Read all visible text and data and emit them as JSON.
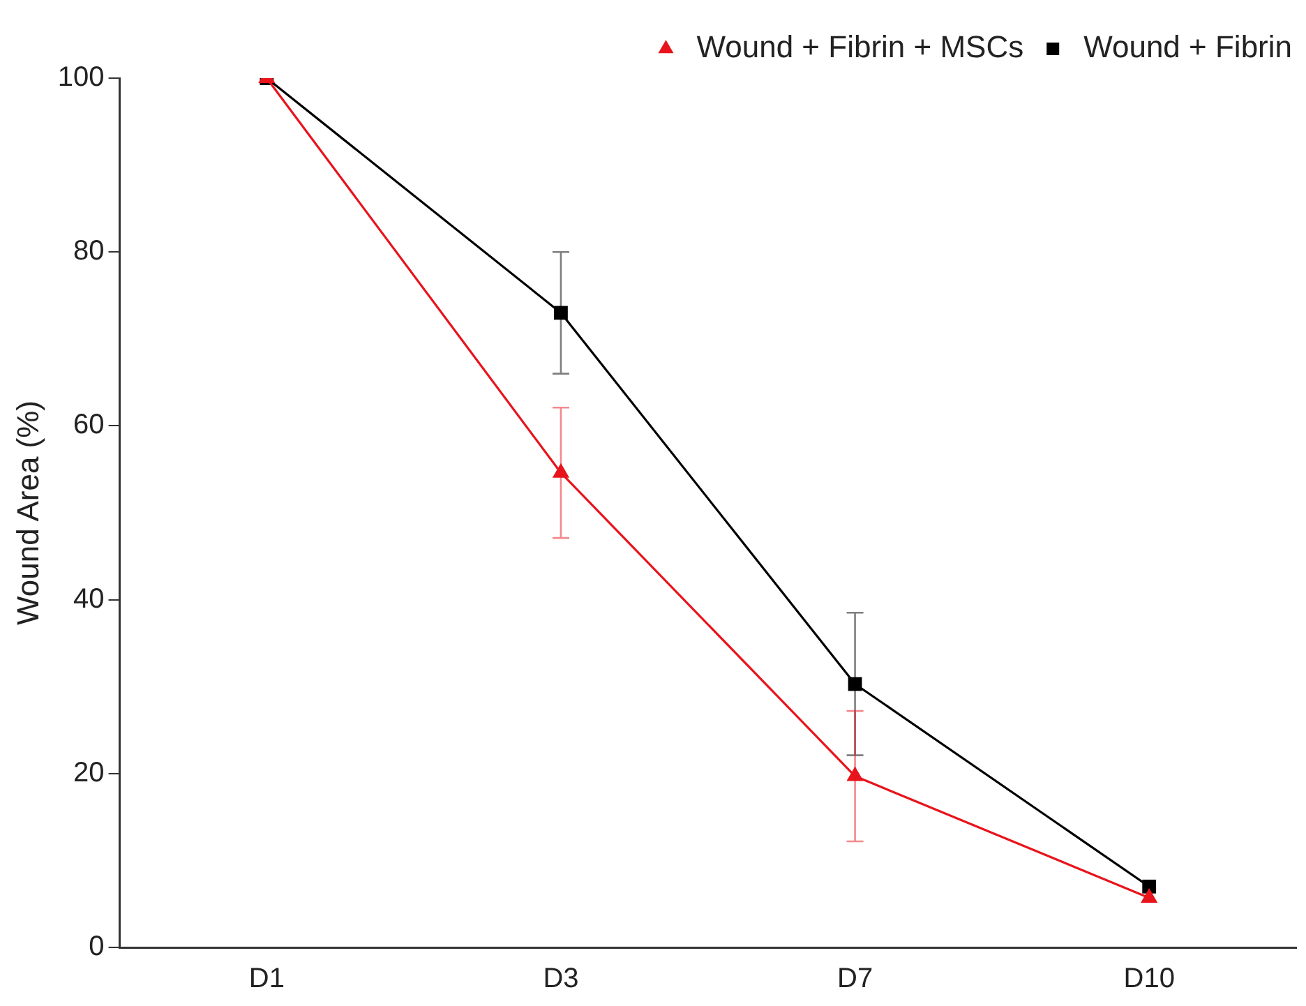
{
  "chart_data": {
    "type": "line",
    "ylabel": "Wound Area (%)",
    "categories": [
      "D1",
      "D3",
      "D7",
      "D10"
    ],
    "series": [
      {
        "name": "Wound + Fibrin",
        "color": "#000000",
        "marker": "square",
        "values": [
          100,
          73,
          30.3,
          7
        ],
        "errors": [
          null,
          7,
          8.2,
          null
        ]
      },
      {
        "name": "Wound + Fibrin + MSCs",
        "color": "#e8141c",
        "marker": "triangle",
        "values": [
          100,
          54.6,
          19.7,
          5.7
        ],
        "errors": [
          null,
          7.5,
          7.5,
          null
        ]
      }
    ],
    "ylim": [
      0,
      100
    ],
    "yticks": [
      0,
      20,
      40,
      60,
      80,
      100
    ],
    "grid": false,
    "legend": "top right",
    "line_style": "solid"
  }
}
